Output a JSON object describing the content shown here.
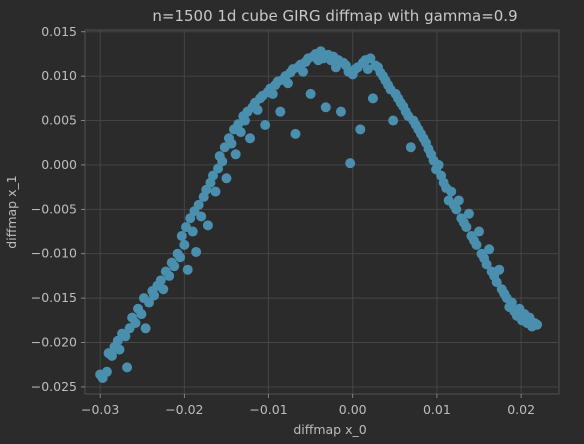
{
  "chart_data": {
    "type": "scatter",
    "title": "n=1500 1d cube GIRG diffmap with gamma=0.9",
    "xlabel": "diffmap x_0",
    "ylabel": "diffmap x_1",
    "xlim": [
      -0.0318,
      0.0245
    ],
    "ylim": [
      -0.0258,
      0.0152
    ],
    "xticks": [
      -0.03,
      -0.02,
      -0.01,
      0.0,
      0.01,
      0.02
    ],
    "xtick_labels": [
      "−0.03",
      "−0.02",
      "−0.01",
      "0.00",
      "0.01",
      "0.02"
    ],
    "yticks": [
      -0.025,
      -0.02,
      -0.015,
      -0.01,
      -0.005,
      0.0,
      0.005,
      0.01,
      0.015
    ],
    "ytick_labels": [
      "−0.025",
      "−0.020",
      "−0.015",
      "−0.010",
      "−0.005",
      "0.000",
      "0.005",
      "0.010",
      "0.015"
    ],
    "grid": true,
    "marker_color": "#4a8fad",
    "series": [
      {
        "points": [
          [
            -0.03,
            -0.0236
          ],
          [
            -0.0297,
            -0.024
          ],
          [
            -0.0292,
            -0.0233
          ],
          [
            -0.029,
            -0.0212
          ],
          [
            -0.0286,
            -0.0215
          ],
          [
            -0.0283,
            -0.0205
          ],
          [
            -0.0279,
            -0.0198
          ],
          [
            -0.0277,
            -0.0208
          ],
          [
            -0.0274,
            -0.019
          ],
          [
            -0.027,
            -0.0193
          ],
          [
            -0.0268,
            -0.0228
          ],
          [
            -0.0265,
            -0.0184
          ],
          [
            -0.0262,
            -0.0172
          ],
          [
            -0.0258,
            -0.0178
          ],
          [
            -0.0255,
            -0.0162
          ],
          [
            -0.0251,
            -0.0168
          ],
          [
            -0.0248,
            -0.015
          ],
          [
            -0.0246,
            -0.0184
          ],
          [
            -0.0242,
            -0.0155
          ],
          [
            -0.0238,
            -0.0142
          ],
          [
            -0.0236,
            -0.0147
          ],
          [
            -0.0232,
            -0.0136
          ],
          [
            -0.0228,
            -0.013
          ],
          [
            -0.0225,
            -0.014
          ],
          [
            -0.0222,
            -0.012
          ],
          [
            -0.0218,
            -0.0125
          ],
          [
            -0.0215,
            -0.011
          ],
          [
            -0.0212,
            -0.0114
          ],
          [
            -0.0208,
            -0.01
          ],
          [
            -0.0205,
            -0.0104
          ],
          [
            -0.0203,
            -0.008
          ],
          [
            -0.02,
            -0.009
          ],
          [
            -0.0198,
            -0.007
          ],
          [
            -0.0196,
            -0.0118
          ],
          [
            -0.0193,
            -0.006
          ],
          [
            -0.019,
            -0.0075
          ],
          [
            -0.0188,
            -0.0052
          ],
          [
            -0.0186,
            -0.0098
          ],
          [
            -0.0183,
            -0.0045
          ],
          [
            -0.018,
            -0.0058
          ],
          [
            -0.0177,
            -0.0036
          ],
          [
            -0.0174,
            -0.0028
          ],
          [
            -0.0172,
            -0.0068
          ],
          [
            -0.0169,
            -0.002
          ],
          [
            -0.0166,
            -0.0012
          ],
          [
            -0.0163,
            -0.003
          ],
          [
            -0.016,
            -0.0004
          ],
          [
            -0.0158,
            0.001
          ],
          [
            -0.0155,
            0.0004
          ],
          [
            -0.0152,
            0.002
          ],
          [
            -0.015,
            -0.0015
          ],
          [
            -0.0147,
            0.003
          ],
          [
            -0.0144,
            0.0024
          ],
          [
            -0.0141,
            0.004
          ],
          [
            -0.0139,
            0.0012
          ],
          [
            -0.0136,
            0.0046
          ],
          [
            -0.0133,
            0.0037
          ],
          [
            -0.013,
            0.0055
          ],
          [
            -0.0128,
            0.005
          ],
          [
            -0.0125,
            0.006
          ],
          [
            -0.0122,
            0.003
          ],
          [
            -0.0119,
            0.0065
          ],
          [
            -0.0116,
            0.007
          ],
          [
            -0.0113,
            0.0062
          ],
          [
            -0.011,
            0.0075
          ],
          [
            -0.0107,
            0.0078
          ],
          [
            -0.0104,
            0.0045
          ],
          [
            -0.0101,
            0.0082
          ],
          [
            -0.0098,
            0.0086
          ],
          [
            -0.0095,
            0.008
          ],
          [
            -0.0092,
            0.009
          ],
          [
            -0.0089,
            0.0094
          ],
          [
            -0.0086,
            0.006
          ],
          [
            -0.0083,
            0.0096
          ],
          [
            -0.008,
            0.01
          ],
          [
            -0.0077,
            0.0092
          ],
          [
            -0.0074,
            0.0104
          ],
          [
            -0.0071,
            0.0108
          ],
          [
            -0.0068,
            0.0035
          ],
          [
            -0.0065,
            0.011
          ],
          [
            -0.0062,
            0.0113
          ],
          [
            -0.0059,
            0.0105
          ],
          [
            -0.0056,
            0.0116
          ],
          [
            -0.0053,
            0.012
          ],
          [
            -0.005,
            0.008
          ],
          [
            -0.0047,
            0.0122
          ],
          [
            -0.0044,
            0.0125
          ],
          [
            -0.0041,
            0.0118
          ],
          [
            -0.0038,
            0.0128
          ],
          [
            -0.0035,
            0.012
          ],
          [
            -0.0032,
            0.0065
          ],
          [
            -0.0029,
            0.0124
          ],
          [
            -0.0026,
            0.0118
          ],
          [
            -0.0023,
            0.0122
          ],
          [
            -0.002,
            0.011
          ],
          [
            -0.0017,
            0.0118
          ],
          [
            -0.0014,
            0.006
          ],
          [
            -0.0011,
            0.0115
          ],
          [
            -0.0008,
            0.0112
          ],
          [
            -0.0005,
            0.0105
          ],
          [
            -0.0003,
            0.0002
          ],
          [
            0.0,
            0.0102
          ],
          [
            0.0003,
            0.0108
          ],
          [
            0.0006,
            0.011
          ],
          [
            0.0009,
            0.004
          ],
          [
            0.0012,
            0.0115
          ],
          [
            0.0015,
            0.0118
          ],
          [
            0.0018,
            0.0108
          ],
          [
            0.0021,
            0.012
          ],
          [
            0.0024,
            0.0075
          ],
          [
            0.0027,
            0.0112
          ],
          [
            0.003,
            0.011
          ],
          [
            0.0033,
            0.0104
          ],
          [
            0.0036,
            0.01
          ],
          [
            0.0039,
            0.0095
          ],
          [
            0.0042,
            0.009
          ],
          [
            0.0045,
            0.0085
          ],
          [
            0.0048,
            0.005
          ],
          [
            0.0051,
            0.008
          ],
          [
            0.0054,
            0.0075
          ],
          [
            0.0057,
            0.007
          ],
          [
            0.006,
            0.0066
          ],
          [
            0.0063,
            0.006
          ],
          [
            0.0066,
            0.0055
          ],
          [
            0.0069,
            0.002
          ],
          [
            0.0072,
            0.005
          ],
          [
            0.0075,
            0.0045
          ],
          [
            0.0078,
            0.004
          ],
          [
            0.0081,
            0.0035
          ],
          [
            0.0084,
            0.003
          ],
          [
            0.0087,
            0.0025
          ],
          [
            0.009,
            0.0018
          ],
          [
            0.0093,
            0.0012
          ],
          [
            0.0096,
            0.0005
          ],
          [
            0.0099,
            -0.0005
          ],
          [
            0.0102,
            0.0
          ],
          [
            0.0105,
            -0.0012
          ],
          [
            0.0108,
            -0.002
          ],
          [
            0.0111,
            -0.0026
          ],
          [
            0.0114,
            -0.004
          ],
          [
            0.0117,
            -0.003
          ],
          [
            0.012,
            -0.0045
          ],
          [
            0.0123,
            -0.005
          ],
          [
            0.0126,
            -0.004
          ],
          [
            0.0129,
            -0.006
          ],
          [
            0.0132,
            -0.0065
          ],
          [
            0.0135,
            -0.007
          ],
          [
            0.0138,
            -0.0055
          ],
          [
            0.0141,
            -0.008
          ],
          [
            0.0144,
            -0.0085
          ],
          [
            0.0147,
            -0.009
          ],
          [
            0.015,
            -0.0075
          ],
          [
            0.0153,
            -0.01
          ],
          [
            0.0156,
            -0.0105
          ],
          [
            0.0159,
            -0.0112
          ],
          [
            0.0162,
            -0.0095
          ],
          [
            0.0165,
            -0.012
          ],
          [
            0.0168,
            -0.0125
          ],
          [
            0.0171,
            -0.0132
          ],
          [
            0.0174,
            -0.0118
          ],
          [
            0.0177,
            -0.014
          ],
          [
            0.018,
            -0.0145
          ],
          [
            0.0183,
            -0.015
          ],
          [
            0.0186,
            -0.016
          ],
          [
            0.0189,
            -0.0155
          ],
          [
            0.0192,
            -0.0165
          ],
          [
            0.0195,
            -0.017
          ],
          [
            0.0198,
            -0.0162
          ],
          [
            0.0201,
            -0.0175
          ],
          [
            0.0204,
            -0.0168
          ],
          [
            0.0207,
            -0.0178
          ],
          [
            0.021,
            -0.0172
          ],
          [
            0.0213,
            -0.0182
          ],
          [
            0.0216,
            -0.0178
          ],
          [
            0.0219,
            -0.018
          ]
        ]
      }
    ]
  }
}
